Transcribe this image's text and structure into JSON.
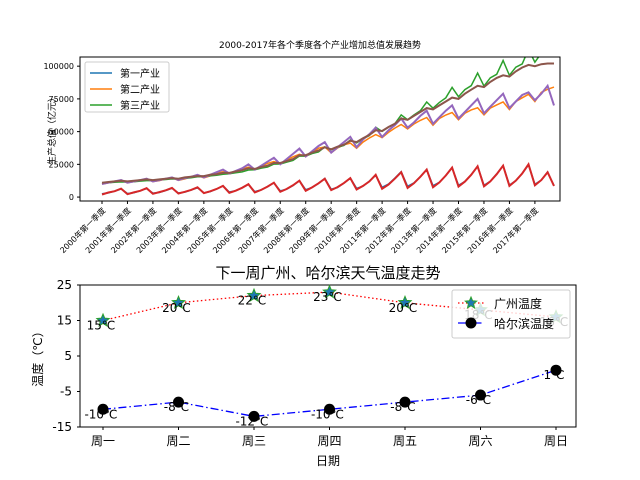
{
  "chart_data": [
    {
      "type": "line",
      "title": "2000-2017年各个季度各个产业增加总值发展趋势",
      "ylabel": "生产总值（亿元）",
      "xlabel": "",
      "ylim": [
        -3000,
        107000
      ],
      "yticks": [
        0,
        25000,
        50000,
        75000,
        100000
      ],
      "ytick_labels": [
        "0",
        "25000",
        "50000",
        "75000",
        "100000"
      ],
      "xtick_labels": [
        "2000年第一季度",
        "2001年第一季度",
        "2002年第一季度",
        "2003年第一季度",
        "2004年第一季度",
        "2005年第一季度",
        "2006年第一季度",
        "2007年第一季度",
        "2008年第一季度",
        "2009年第一季度",
        "2010年第一季度",
        "2011年第一季度",
        "2012年第一季度",
        "2013年第一季度",
        "2014年第一季度",
        "2015年第一季度",
        "2016年第一季度",
        "2017年第一季度"
      ],
      "legend": {
        "placement": "upper left",
        "entries": [
          "第一产业",
          "第二产业",
          "第三产业"
        ]
      },
      "colors": {
        "第一产业": "#1f77b4",
        "第二产业": "#ff7f0e",
        "第三产业": "#2ca02c",
        "overlay_a": "#d62728",
        "overlay_b": "#9467bd",
        "overlay_c": "#8c564b"
      },
      "series": [
        {
          "name": "第一产业",
          "values": [
            2500,
            3200,
            4600,
            6200,
            2700,
            3300,
            4800,
            6500,
            3000,
            3500,
            5000,
            6700,
            3100,
            3800,
            5300,
            7100,
            3300,
            4200,
            6200,
            8500,
            3900,
            4900,
            7100,
            9700,
            4200,
            5500,
            7900,
            10800,
            4700,
            6000,
            8800,
            12500,
            5600,
            7300,
            10400,
            14300,
            6000,
            7300,
            10700,
            14500,
            6700,
            8300,
            12200,
            16600,
            7500,
            9900,
            14400,
            19400,
            8200,
            10800,
            15600,
            21000,
            8700,
            11300,
            16400,
            22400,
            9000,
            11900,
            17200,
            23400,
            9000,
            12100,
            17700,
            24000,
            9200,
            12400,
            18100,
            24600,
            9800,
            13000,
            19200,
            8600
          ]
        },
        {
          "name": "第二产业",
          "values": [
            10000,
            10800,
            11700,
            12400,
            11000,
            11800,
            12700,
            13800,
            11800,
            12600,
            13800,
            14800,
            12800,
            13900,
            15300,
            16400,
            14700,
            16200,
            18000,
            19300,
            17800,
            19500,
            21500,
            22800,
            21200,
            23600,
            25700,
            27200,
            25500,
            28300,
            30800,
            32700,
            31000,
            34000,
            37300,
            38300,
            33800,
            37500,
            39900,
            41200,
            37300,
            42000,
            45100,
            47700,
            45400,
            49400,
            52700,
            55400,
            52100,
            55800,
            58600,
            60800,
            54900,
            60000,
            62700,
            64600,
            59000,
            64100,
            66600,
            68200,
            62800,
            68000,
            70400,
            72700,
            66900,
            73000,
            75800,
            78500,
            73000,
            80000,
            82300,
            84000
          ]
        },
        {
          "name": "第三产业",
          "values": [
            10500,
            10900,
            11300,
            11600,
            11400,
            11700,
            12200,
            12600,
            12600,
            13100,
            13400,
            13900,
            13700,
            14300,
            14700,
            15500,
            15500,
            16200,
            16600,
            17500,
            17800,
            18600,
            19200,
            20700,
            20900,
            22100,
            23000,
            25200,
            25300,
            26700,
            28000,
            31400,
            31300,
            33300,
            34500,
            38300,
            36100,
            38000,
            39500,
            43600,
            41400,
            44500,
            47000,
            53300,
            50200,
            53400,
            56000,
            62800,
            59100,
            62700,
            65900,
            72600,
            67900,
            72300,
            75800,
            83800,
            76700,
            82100,
            85100,
            94700,
            84800,
            91100,
            93800,
            104300,
            93000,
            99200,
            101700,
            112800,
            103000,
            110000,
            113200,
            123000
          ]
        },
        {
          "name": "",
          "color_key": "overlay_a",
          "values": [
            2000,
            3500,
            4500,
            6500,
            2200,
            3600,
            4800,
            6800,
            2500,
            3800,
            5200,
            7000,
            2700,
            4000,
            5500,
            7500,
            3000,
            4400,
            6200,
            8500,
            3300,
            4900,
            7100,
            9800,
            3600,
            5500,
            8000,
            11000,
            4000,
            6200,
            9000,
            12500,
            4800,
            7400,
            10500,
            14000,
            5300,
            7600,
            10700,
            14500,
            5800,
            8500,
            12000,
            17000,
            6300,
            9500,
            14000,
            19000,
            7000,
            10500,
            15500,
            21000,
            7500,
            11200,
            16500,
            22500,
            8000,
            11800,
            17000,
            23500,
            8200,
            12000,
            17500,
            24000,
            8500,
            12500,
            18000,
            25000,
            9000,
            13000,
            19000,
            8500
          ]
        },
        {
          "name": "",
          "color_key": "overlay_b",
          "values": [
            10000,
            11000,
            12000,
            13000,
            11000,
            12000,
            13000,
            14000,
            12000,
            13000,
            14000,
            15000,
            13000,
            14500,
            15500,
            17000,
            15000,
            17000,
            19000,
            21000,
            18000,
            20000,
            22000,
            25000,
            21000,
            24000,
            27000,
            30000,
            25000,
            29000,
            33000,
            37000,
            31000,
            35000,
            39000,
            42000,
            34000,
            38000,
            42000,
            46000,
            38000,
            44000,
            48000,
            53000,
            46000,
            51000,
            55000,
            60000,
            53000,
            57000,
            62000,
            66000,
            56000,
            61000,
            66000,
            70000,
            60000,
            65000,
            70000,
            75000,
            64000,
            69000,
            74000,
            79000,
            68000,
            73000,
            78000,
            80000,
            74000,
            79000,
            85000,
            70000
          ]
        },
        {
          "name": "",
          "color_key": "overlay_c",
          "values": [
            11000,
            11500,
            12000,
            12500,
            12000,
            12500,
            13000,
            13500,
            13000,
            13500,
            14000,
            14500,
            14000,
            15000,
            15500,
            16000,
            16000,
            17000,
            17500,
            18500,
            18500,
            19500,
            20500,
            22000,
            21500,
            23000,
            24000,
            26000,
            26000,
            27500,
            29000,
            32000,
            32000,
            34000,
            35500,
            38000,
            36500,
            38500,
            40000,
            43000,
            42000,
            45000,
            47500,
            51000,
            50500,
            53500,
            56000,
            60000,
            59000,
            62000,
            65000,
            68000,
            67000,
            70000,
            73000,
            76000,
            75000,
            79000,
            82000,
            85000,
            84000,
            88000,
            91000,
            93000,
            92000,
            96000,
            99000,
            101000,
            100000,
            101500,
            102000,
            102000
          ]
        }
      ]
    },
    {
      "type": "line",
      "title": "下一周广州、哈尔滨天气温度走势",
      "xlabel": "日期",
      "ylabel": "温度（℃）",
      "ylim": [
        -15,
        25
      ],
      "yticks": [
        -15,
        -5,
        5,
        15,
        25
      ],
      "ytick_labels": [
        "-15",
        "-5",
        "5",
        "15",
        "25"
      ],
      "categories": [
        "周一",
        "周二",
        "周三",
        "周四",
        "周五",
        "周六",
        "周日"
      ],
      "legend": {
        "placement": "upper right",
        "entries": [
          "广州温度",
          "哈尔滨温度"
        ]
      },
      "series": [
        {
          "name": "广州温度",
          "values": [
            15,
            20,
            22,
            23,
            20,
            18,
            16
          ],
          "color": "#ff0000",
          "marker_color": "#1f77b4",
          "linestyle": "dotted",
          "marker": "star",
          "labels": [
            "15℃",
            "20℃",
            "22℃",
            "23℃",
            "20℃",
            "18℃",
            "16℃"
          ]
        },
        {
          "name": "哈尔滨温度",
          "values": [
            -10,
            -8,
            -12,
            -10,
            -8,
            -6,
            1
          ],
          "color": "#0000ff",
          "marker_color": "#000000",
          "linestyle": "dashdot",
          "marker": "circle",
          "labels": [
            "-10℃",
            "-8℃",
            "-12℃",
            "-10℃",
            "-8℃",
            "-6℃",
            "1℃"
          ]
        }
      ]
    }
  ]
}
